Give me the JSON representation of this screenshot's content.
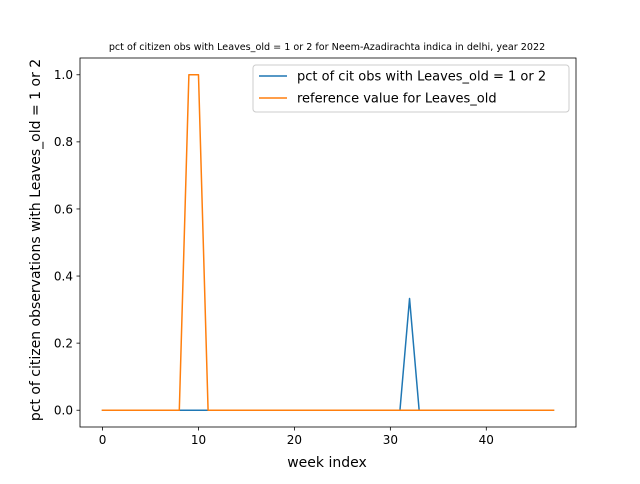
{
  "chart_data": {
    "type": "line",
    "title": "pct of citizen obs with Leaves_old = 1 or 2 for Neem-Azadirachta indica in delhi, year 2022",
    "xlabel": "week index",
    "ylabel": "pct of citizen observations with Leaves_old = 1 or 2",
    "xlim": [
      -2.35,
      49.35
    ],
    "ylim": [
      -0.05,
      1.05
    ],
    "xticks": [
      0,
      10,
      20,
      30,
      40
    ],
    "yticks": [
      0.0,
      0.2,
      0.4,
      0.6,
      0.8,
      1.0
    ],
    "xtick_labels": [
      "0",
      "10",
      "20",
      "30",
      "40"
    ],
    "ytick_labels": [
      "0.0",
      "0.2",
      "0.4",
      "0.6",
      "0.8",
      "1.0"
    ],
    "grid": false,
    "legend_position": "upper-right",
    "series": [
      {
        "name": "pct of cit obs with Leaves_old = 1 or 2",
        "color": "#1f77b4",
        "x": [
          0,
          1,
          2,
          3,
          4,
          5,
          6,
          7,
          8,
          9,
          10,
          11,
          12,
          13,
          14,
          15,
          16,
          17,
          18,
          19,
          20,
          21,
          22,
          23,
          24,
          25,
          26,
          27,
          28,
          29,
          30,
          31,
          32,
          33,
          34,
          35,
          36,
          37,
          38,
          39,
          40,
          41,
          42,
          43,
          44,
          45,
          46,
          47
        ],
        "y": [
          0,
          0,
          0,
          0,
          0,
          0,
          0,
          0,
          0,
          0,
          0,
          0,
          0,
          0,
          0,
          0,
          0,
          0,
          0,
          0,
          0,
          0,
          0,
          0,
          0,
          0,
          0,
          0,
          0,
          0,
          0,
          0,
          0.333,
          0,
          0,
          0,
          0,
          0,
          0,
          0,
          0,
          0,
          0,
          0,
          0,
          0,
          0,
          0
        ]
      },
      {
        "name": "reference value for Leaves_old",
        "color": "#ff7f0e",
        "x": [
          0,
          1,
          2,
          3,
          4,
          5,
          6,
          7,
          8,
          9,
          10,
          11,
          12,
          13,
          14,
          15,
          16,
          17,
          18,
          19,
          20,
          21,
          22,
          23,
          24,
          25,
          26,
          27,
          28,
          29,
          30,
          31,
          32,
          33,
          34,
          35,
          36,
          37,
          38,
          39,
          40,
          41,
          42,
          43,
          44,
          45,
          46,
          47
        ],
        "y": [
          0,
          0,
          0,
          0,
          0,
          0,
          0,
          0,
          0,
          1,
          1,
          0,
          0,
          0,
          0,
          0,
          0,
          0,
          0,
          0,
          0,
          0,
          0,
          0,
          0,
          0,
          0,
          0,
          0,
          0,
          0,
          0,
          0,
          0,
          0,
          0,
          0,
          0,
          0,
          0,
          0,
          0,
          0,
          0,
          0,
          0,
          0,
          0
        ]
      }
    ]
  }
}
